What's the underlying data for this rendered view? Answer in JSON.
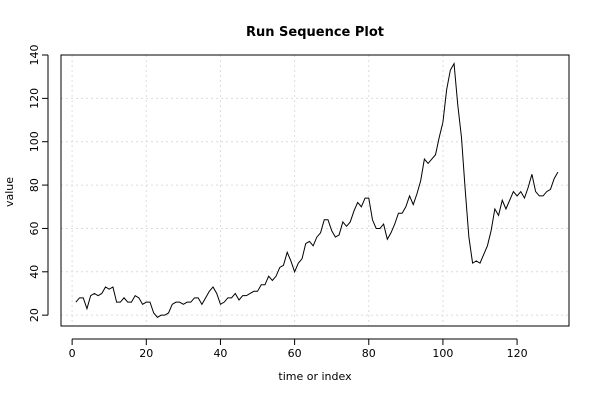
{
  "chart_data": {
    "type": "line",
    "title": "Run Sequence Plot",
    "xlabel": "time or index",
    "ylabel": "value",
    "xlim": [
      -3,
      134
    ],
    "ylim": [
      15,
      140
    ],
    "xticks": [
      0,
      20,
      40,
      60,
      80,
      100,
      120
    ],
    "yticks": [
      20,
      40,
      60,
      80,
      100,
      120,
      140
    ],
    "grid": true,
    "series": [
      {
        "values": [
          26,
          28,
          28,
          23,
          29,
          30,
          29,
          30,
          33,
          32,
          33,
          26,
          26,
          28,
          26,
          26,
          29,
          28,
          25,
          26,
          26,
          21,
          19,
          20,
          20,
          21,
          25,
          26,
          26,
          25,
          26,
          26,
          28,
          28,
          25,
          28,
          31,
          33,
          30,
          25,
          26,
          28,
          28,
          30,
          27,
          29,
          29,
          30,
          31,
          31,
          34,
          34,
          38,
          36,
          38,
          42,
          43,
          49,
          45,
          40,
          44,
          46,
          53,
          54,
          52,
          56,
          58,
          64,
          64,
          59,
          56,
          57,
          63,
          61,
          63,
          68,
          72,
          70,
          74,
          74,
          64,
          60,
          60,
          62,
          55,
          58,
          62,
          67,
          67,
          70,
          75,
          71,
          76,
          82,
          92,
          90,
          92,
          94,
          102,
          109,
          124,
          133,
          136,
          117,
          102,
          78,
          56,
          44,
          45,
          44,
          48,
          52,
          59,
          69,
          66,
          73,
          69,
          73,
          77,
          75,
          77,
          74,
          79,
          85,
          77,
          75,
          75,
          77,
          78,
          83,
          86
        ]
      }
    ]
  }
}
